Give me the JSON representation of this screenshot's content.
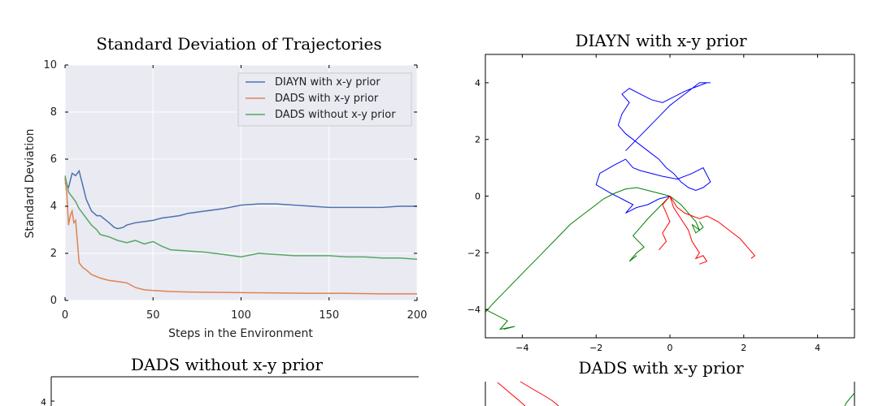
{
  "chart_data": [
    {
      "type": "line",
      "title": "Standard Deviation of Trajectories",
      "xlabel": "Steps in the Environment",
      "ylabel": "Standard Deviation",
      "xlim": [
        0,
        200
      ],
      "ylim": [
        0,
        10
      ],
      "xticks": [
        0,
        50,
        100,
        150,
        200
      ],
      "yticks": [
        0,
        2,
        4,
        6,
        8,
        10
      ],
      "grid": true,
      "legend": "top-right",
      "series": [
        {
          "name": "DIAYN with x-y prior",
          "color": "#4c72b0",
          "x": [
            0,
            2,
            4,
            6,
            8,
            10,
            12,
            15,
            18,
            20,
            25,
            28,
            30,
            33,
            35,
            40,
            45,
            50,
            55,
            60,
            65,
            70,
            75,
            80,
            90,
            100,
            110,
            120,
            130,
            140,
            150,
            160,
            170,
            180,
            190,
            200
          ],
          "y": [
            5.0,
            4.8,
            5.4,
            5.3,
            5.5,
            4.9,
            4.3,
            3.8,
            3.6,
            3.6,
            3.3,
            3.1,
            3.05,
            3.1,
            3.2,
            3.3,
            3.35,
            3.4,
            3.5,
            3.55,
            3.6,
            3.7,
            3.75,
            3.8,
            3.9,
            4.05,
            4.1,
            4.1,
            4.05,
            4.0,
            3.95,
            3.95,
            3.95,
            3.95,
            4.0,
            4.0
          ]
        },
        {
          "name": "DADS with x-y prior",
          "color": "#dd8452",
          "x": [
            0,
            1,
            2,
            3,
            4,
            5,
            6,
            7,
            8,
            10,
            12,
            15,
            20,
            25,
            30,
            35,
            40,
            45,
            50,
            60,
            70,
            80,
            90,
            100,
            120,
            140,
            160,
            180,
            200
          ],
          "y": [
            5.2,
            4.5,
            3.2,
            3.6,
            3.8,
            3.3,
            3.4,
            2.5,
            1.6,
            1.4,
            1.3,
            1.1,
            0.95,
            0.85,
            0.8,
            0.75,
            0.55,
            0.45,
            0.42,
            0.38,
            0.36,
            0.35,
            0.34,
            0.33,
            0.32,
            0.3,
            0.3,
            0.28,
            0.28
          ]
        },
        {
          "name": "DADS without x-y prior",
          "color": "#55a868",
          "x": [
            0,
            2,
            4,
            6,
            8,
            10,
            12,
            15,
            18,
            20,
            25,
            30,
            35,
            40,
            45,
            50,
            55,
            60,
            70,
            80,
            90,
            100,
            110,
            120,
            130,
            140,
            150,
            160,
            170,
            180,
            190,
            200
          ],
          "y": [
            5.3,
            4.6,
            4.4,
            4.2,
            3.9,
            3.7,
            3.5,
            3.2,
            3.0,
            2.8,
            2.7,
            2.55,
            2.45,
            2.55,
            2.4,
            2.5,
            2.3,
            2.15,
            2.1,
            2.05,
            1.95,
            1.85,
            2.0,
            1.95,
            1.9,
            1.9,
            1.9,
            1.85,
            1.85,
            1.8,
            1.8,
            1.75
          ]
        }
      ]
    },
    {
      "type": "line",
      "title": "DIAYN with x-y prior",
      "xlim": [
        -5,
        5
      ],
      "ylim": [
        -5,
        5
      ],
      "xticks": [
        -4,
        -2,
        0,
        2,
        4
      ],
      "yticks": [
        -4,
        -2,
        0,
        2,
        4
      ],
      "grid": false,
      "series": [
        {
          "color": "#0000ff",
          "x": [
            0,
            -0.3,
            -0.6,
            -0.9,
            -1.2,
            -1.0,
            -1.3,
            -1.6,
            -2.0,
            -1.9,
            -1.5,
            -1.2,
            -1.0,
            -0.8,
            -0.5,
            -0.2,
            0.2,
            0.6,
            0.9,
            1.1,
            0.9,
            0.7,
            0.5,
            0.3,
            0.1,
            -0.1,
            -0.3,
            -0.6,
            -0.9,
            -1.2,
            -1.4,
            -1.3,
            -1.1,
            -1.3,
            -1.1,
            -0.8,
            -0.5,
            -0.2,
            0.1,
            0.4,
            0.6,
            0.8,
            1.0,
            1.1,
            0.8,
            0.4,
            0.0,
            -0.3,
            -0.6,
            -0.9,
            -1.2
          ],
          "y": [
            0,
            -0.1,
            -0.3,
            -0.4,
            -0.6,
            -0.3,
            -0.1,
            0.1,
            0.4,
            0.8,
            1.1,
            1.3,
            1.0,
            0.9,
            0.8,
            0.7,
            0.6,
            0.8,
            1.0,
            0.5,
            0.3,
            0.2,
            0.3,
            0.5,
            0.8,
            1.0,
            1.3,
            1.6,
            1.9,
            2.2,
            2.5,
            2.9,
            3.3,
            3.6,
            3.8,
            3.6,
            3.4,
            3.3,
            3.5,
            3.7,
            3.8,
            3.9,
            4.0,
            4.0,
            4.0,
            3.6,
            3.2,
            2.8,
            2.4,
            2.0,
            1.6
          ]
        },
        {
          "color": "#008000",
          "x": [
            0,
            -0.3,
            -0.6,
            -0.9,
            -1.2,
            -1.5,
            -1.8,
            -2.1,
            -2.4,
            -2.7,
            -3.0,
            -3.3,
            -3.6,
            -3.9,
            -4.2,
            -4.5,
            -4.8,
            -5.0,
            0,
            0.3,
            0.5,
            0.7,
            0.8,
            0.6,
            0.7,
            0.9,
            0.8,
            0,
            -0.3,
            -0.6,
            -0.8,
            -1.0,
            -0.7,
            -0.9,
            -1.1,
            -0.9,
            -5.0,
            -4.7,
            -4.4,
            -4.6,
            -4.2,
            -4.5
          ],
          "y": [
            0,
            0.1,
            0.2,
            0.3,
            0.25,
            0.1,
            -0.1,
            -0.4,
            -0.7,
            -1.0,
            -1.4,
            -1.8,
            -2.2,
            -2.6,
            -3.0,
            -3.4,
            -3.8,
            -4.1,
            0,
            -0.3,
            -0.6,
            -0.9,
            -1.2,
            -1.0,
            -1.3,
            -1.1,
            -0.9,
            0,
            -0.4,
            -0.8,
            -1.1,
            -1.4,
            -1.8,
            -2.0,
            -2.3,
            -2.1,
            -4.0,
            -4.2,
            -4.4,
            -4.7,
            -4.6,
            -4.7
          ]
        },
        {
          "color": "#ff0000",
          "x": [
            0,
            0.2,
            0.4,
            0.6,
            0.8,
            1.0,
            1.3,
            1.6,
            1.9,
            2.1,
            2.3,
            2.2,
            0,
            0.1,
            0.3,
            0.5,
            0.6,
            0.8,
            0.7,
            0.9,
            1.0,
            0.8,
            0,
            -0.2,
            -0.1,
            0.0,
            -0.2,
            -0.1,
            -0.3
          ],
          "y": [
            0,
            -0.4,
            -0.6,
            -0.7,
            -0.8,
            -0.7,
            -0.9,
            -1.2,
            -1.5,
            -1.8,
            -2.1,
            -2.2,
            0,
            -0.4,
            -0.8,
            -1.2,
            -1.6,
            -2.0,
            -2.2,
            -2.1,
            -2.3,
            -2.4,
            0,
            -0.3,
            -0.6,
            -0.9,
            -1.3,
            -1.6,
            -1.9
          ]
        }
      ]
    },
    {
      "type": "line",
      "title": "DADS without x-y prior",
      "series": []
    },
    {
      "type": "line",
      "title": "DADS with x-y prior",
      "series": []
    }
  ]
}
